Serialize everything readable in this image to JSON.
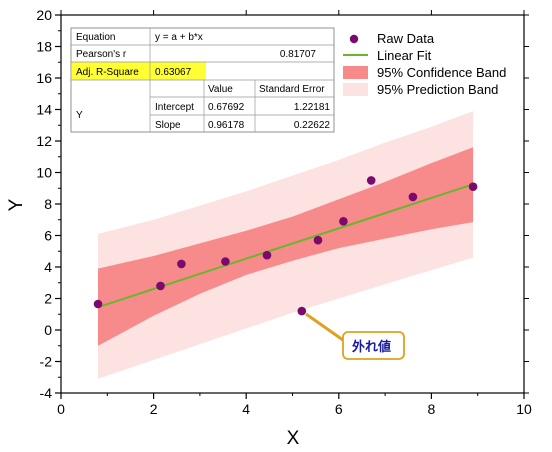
{
  "chart_data": {
    "type": "scatter",
    "xlabel": "X",
    "ylabel": "Y",
    "xlim": [
      0,
      10
    ],
    "ylim": [
      -4,
      20
    ],
    "x_ticks": [
      0,
      2,
      4,
      6,
      8,
      10
    ],
    "y_ticks": [
      -4,
      -2,
      0,
      2,
      4,
      6,
      8,
      10,
      12,
      14,
      16,
      18,
      20
    ],
    "grid": false,
    "legend_position": "top-right",
    "series": [
      {
        "name": "Raw Data",
        "kind": "scatter",
        "color": "#7b0a6e",
        "points": [
          [
            0.8,
            1.65
          ],
          [
            2.15,
            2.8
          ],
          [
            2.6,
            4.2
          ],
          [
            3.55,
            4.35
          ],
          [
            4.45,
            4.75
          ],
          [
            5.2,
            1.2
          ],
          [
            5.55,
            5.7
          ],
          [
            6.1,
            6.9
          ],
          [
            6.7,
            9.5
          ],
          [
            7.6,
            8.45
          ],
          [
            8.9,
            9.1
          ]
        ]
      },
      {
        "name": "Linear Fit",
        "kind": "line",
        "color": "#6ab62a",
        "points": [
          [
            0.8,
            1.45
          ],
          [
            8.9,
            9.25
          ]
        ]
      },
      {
        "name": "95% Confidence Band",
        "kind": "band",
        "color": "#f78a8a",
        "x": [
          0.8,
          2,
          3,
          4,
          5,
          6,
          7,
          8,
          8.9
        ],
        "lower": [
          -1.0,
          0.9,
          2.3,
          3.5,
          4.4,
          5.2,
          5.8,
          6.4,
          6.85
        ],
        "upper": [
          3.9,
          4.7,
          5.5,
          6.3,
          7.2,
          8.3,
          9.4,
          10.6,
          11.6
        ]
      },
      {
        "name": "95% Prediction Band",
        "kind": "band",
        "color": "#fde2e2",
        "x": [
          0.8,
          2,
          3,
          4,
          5,
          6,
          7,
          8,
          8.9
        ],
        "lower": [
          -3.1,
          -1.9,
          -0.9,
          0.1,
          1.1,
          2.0,
          2.9,
          3.8,
          4.6
        ],
        "upper": [
          6.1,
          7.0,
          7.9,
          8.8,
          9.8,
          10.8,
          11.9,
          12.9,
          13.9
        ]
      }
    ],
    "annotation": {
      "text": "外れ値",
      "target": [
        5.2,
        1.2
      ]
    },
    "stats_table": {
      "rows": [
        {
          "label": "Equation",
          "value": "y = a + b*x"
        },
        {
          "label": "Pearson's r",
          "value": "0.81707"
        },
        {
          "label": "Adj. R-Square",
          "value": "0.63067",
          "highlight": "#ffff33"
        }
      ],
      "columns": [
        "Value",
        "Standard Error"
      ],
      "param_group": "Y",
      "params": [
        {
          "name": "Intercept",
          "value": "0.67692",
          "error": "1.22181"
        },
        {
          "name": "Slope",
          "value": "0.96178",
          "error": "0.22622"
        }
      ]
    }
  }
}
